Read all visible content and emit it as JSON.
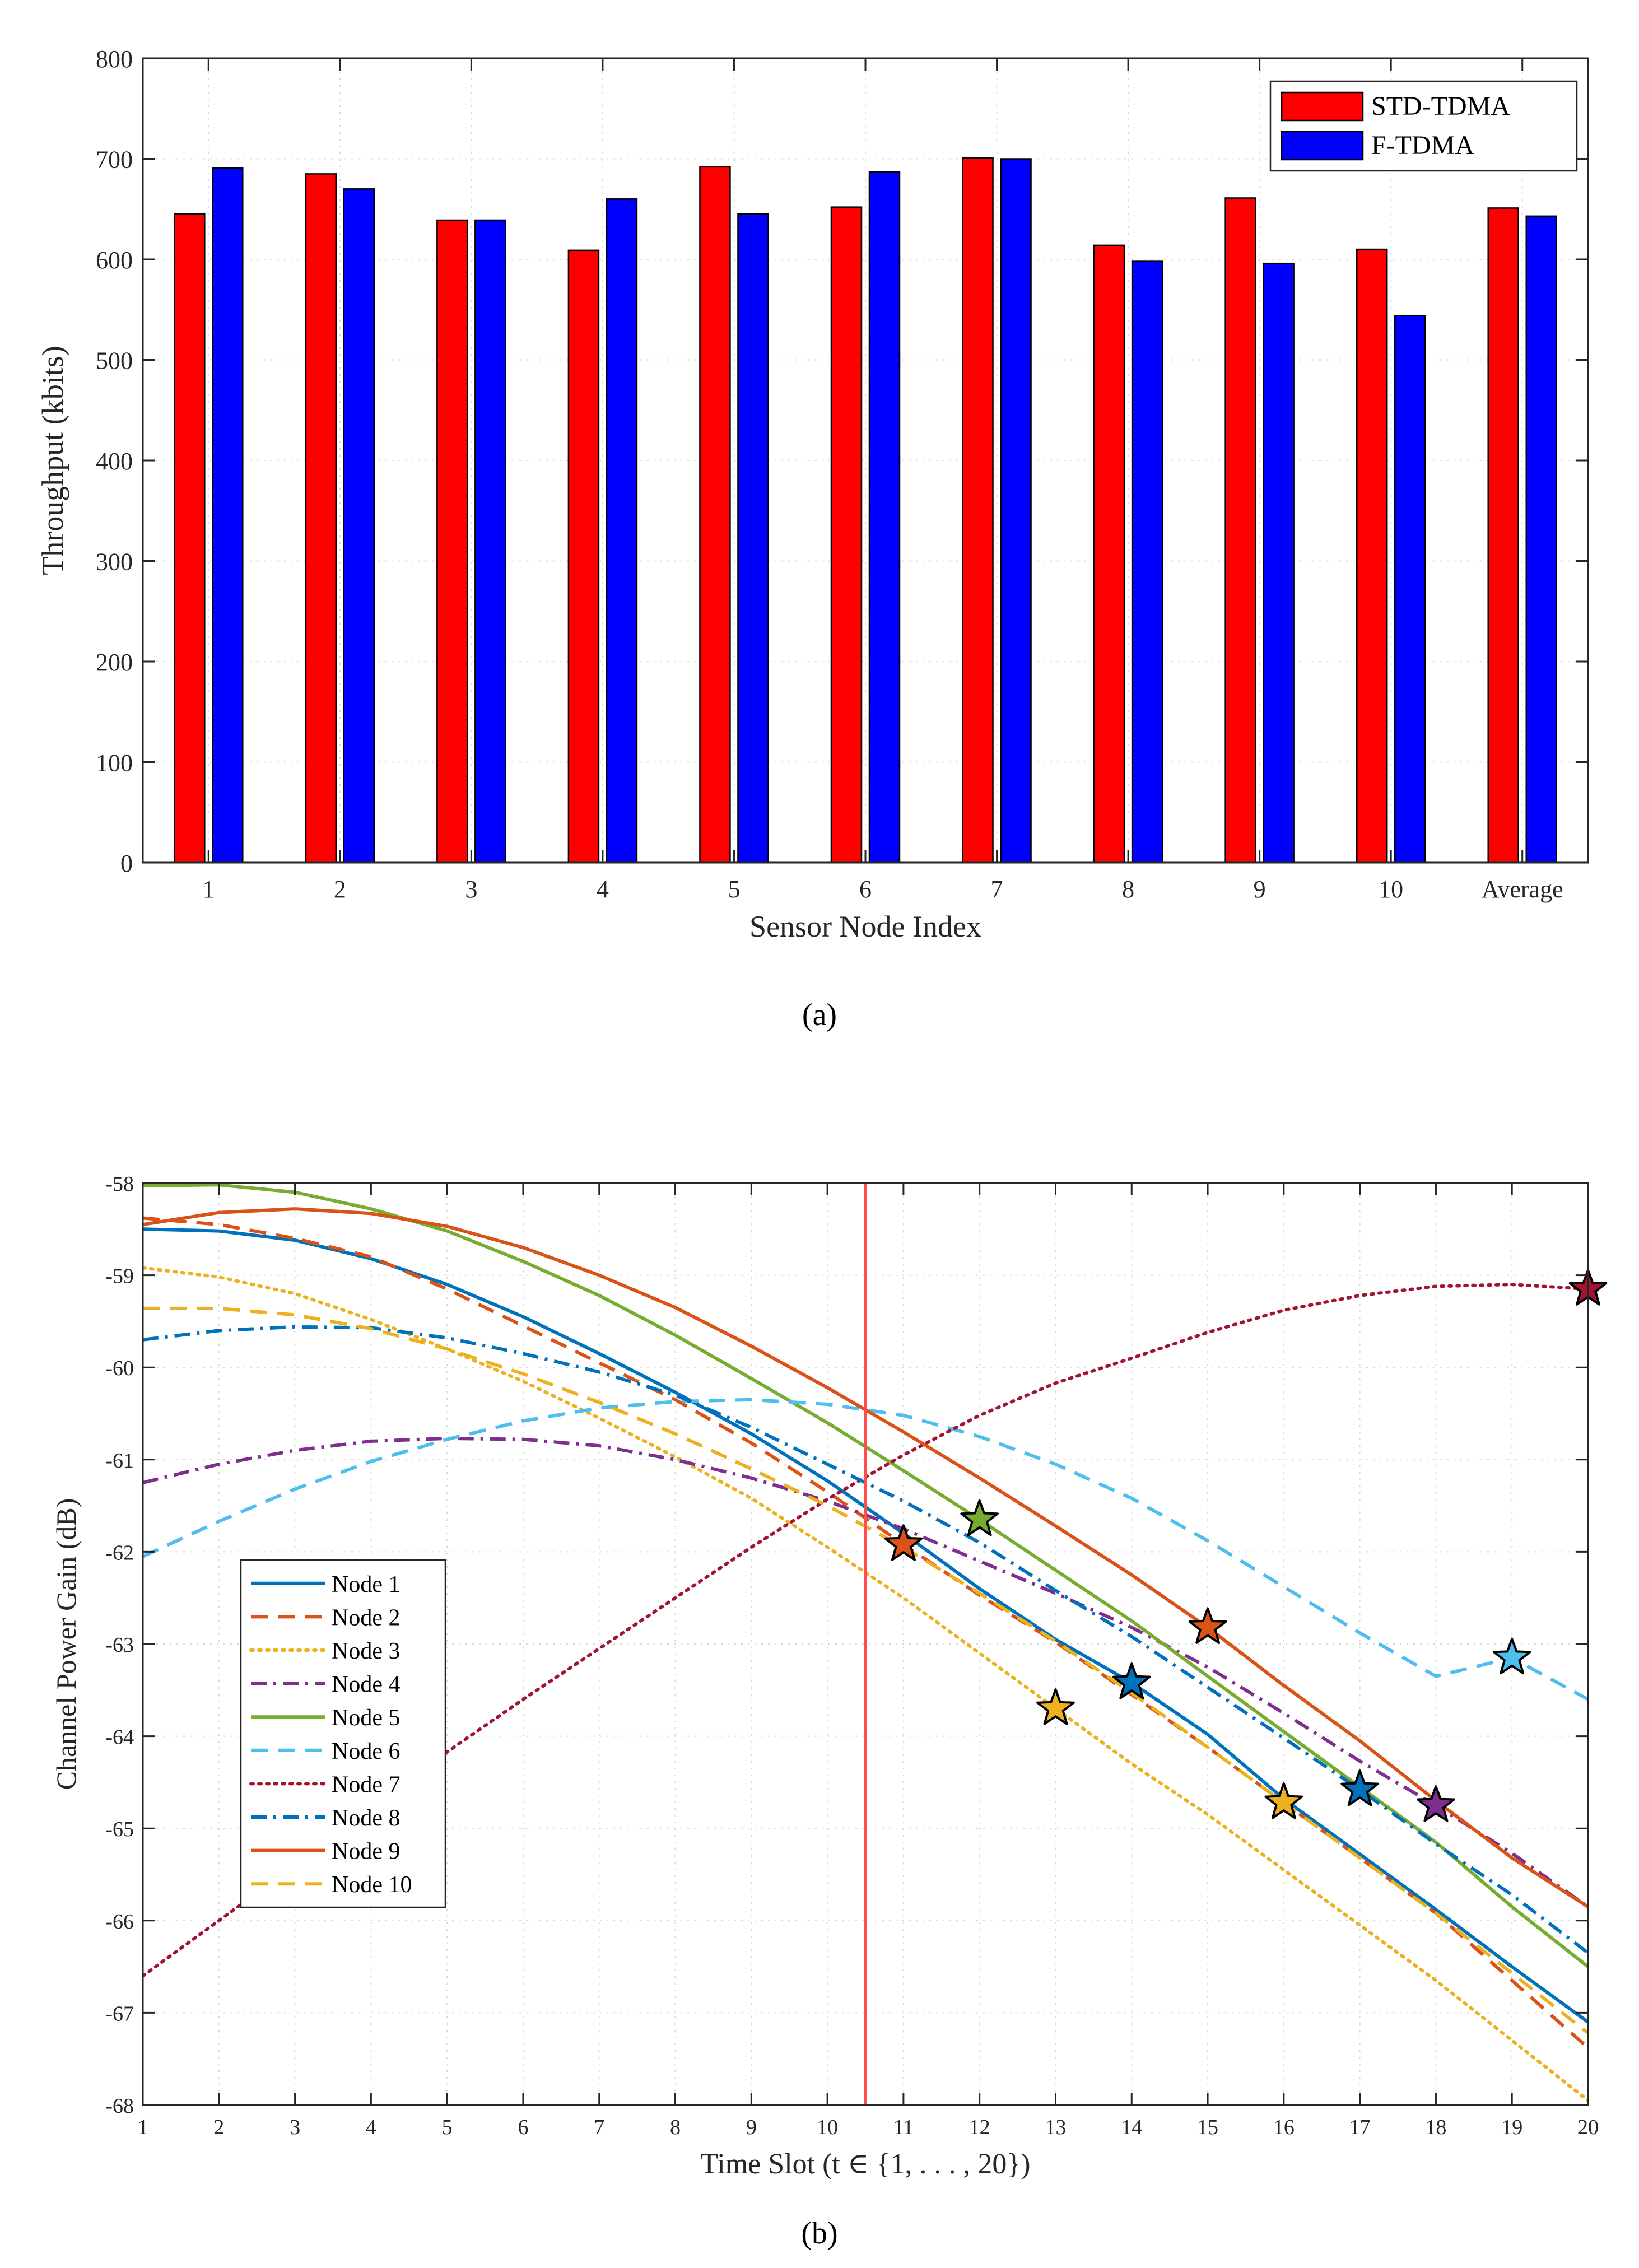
{
  "captions": {
    "a": "(a)",
    "b": "(b)"
  },
  "chart_data": [
    {
      "type": "bar",
      "xlabel": "Sensor Node Index",
      "ylabel": "Throughput (kbits)",
      "ylim": [
        0,
        800
      ],
      "yticks": [
        0,
        100,
        200,
        300,
        400,
        500,
        600,
        700,
        800
      ],
      "grid": true,
      "legend_position": "top-right",
      "categories": [
        "1",
        "2",
        "3",
        "4",
        "5",
        "6",
        "7",
        "8",
        "9",
        "10",
        "Average"
      ],
      "series": [
        {
          "name": "STD-TDMA",
          "color": "#ff0000",
          "values": [
            645,
            685,
            639,
            609,
            692,
            652,
            701,
            614,
            661,
            610,
            651
          ]
        },
        {
          "name": "F-TDMA",
          "color": "#0000ff",
          "values": [
            691,
            670,
            639,
            660,
            645,
            687,
            700,
            598,
            596,
            544,
            643
          ]
        }
      ]
    },
    {
      "type": "line",
      "xlabel": "Time Slot (t ∈ {1, . . . , 20})",
      "ylabel": "Channel Power Gain (dB)",
      "xlim": [
        1,
        20
      ],
      "ylim": [
        -68,
        -58
      ],
      "xticks": [
        1,
        2,
        3,
        4,
        5,
        6,
        7,
        8,
        9,
        10,
        11,
        12,
        13,
        14,
        15,
        16,
        17,
        18,
        19,
        20
      ],
      "yticks": [
        -68,
        -67,
        -66,
        -65,
        -64,
        -63,
        -62,
        -61,
        -60,
        -59,
        -58
      ],
      "grid": true,
      "legend_position": "bottom-left",
      "vertical_line": {
        "x": 10.5,
        "color": "#ff4d4d"
      },
      "x": [
        1,
        2,
        3,
        4,
        5,
        6,
        7,
        8,
        9,
        10,
        11,
        12,
        13,
        14,
        15,
        16,
        17,
        18,
        19,
        20
      ],
      "series": [
        {
          "name": "Node 1",
          "color": "#0072bd",
          "dash": "solid",
          "values": [
            -58.5,
            -58.52,
            -58.62,
            -58.82,
            -59.1,
            -59.45,
            -59.85,
            -60.27,
            -60.72,
            -61.23,
            -61.8,
            -62.4,
            -62.95,
            -63.42,
            -63.98,
            -64.68,
            -65.28,
            -65.88,
            -66.5,
            -67.1
          ],
          "marker": {
            "x": 14,
            "y": -63.42
          }
        },
        {
          "name": "Node 2",
          "color": "#d95319",
          "dash": "dashed",
          "values": [
            -58.38,
            -58.45,
            -58.6,
            -58.8,
            -59.15,
            -59.55,
            -59.95,
            -60.35,
            -60.82,
            -61.35,
            -61.92,
            -62.47,
            -62.98,
            -63.55,
            -64.12,
            -64.72,
            -65.32,
            -65.92,
            -66.65,
            -67.38
          ],
          "marker": {
            "x": 11,
            "y": -61.92
          }
        },
        {
          "name": "Node 3",
          "color": "#edb120",
          "dash": "dotted",
          "values": [
            -58.92,
            -59.02,
            -59.2,
            -59.48,
            -59.8,
            -60.15,
            -60.55,
            -60.97,
            -61.42,
            -61.95,
            -62.5,
            -63.1,
            -63.7,
            -64.3,
            -64.85,
            -65.45,
            -66.05,
            -66.65,
            -67.3,
            -67.95
          ],
          "marker": {
            "x": 13,
            "y": -63.7
          }
        },
        {
          "name": "Node 4",
          "color": "#7e2f8e",
          "dash": "dashdot",
          "values": [
            -61.25,
            -61.05,
            -60.9,
            -60.8,
            -60.77,
            -60.78,
            -60.85,
            -61.0,
            -61.2,
            -61.45,
            -61.75,
            -62.1,
            -62.45,
            -62.82,
            -63.25,
            -63.75,
            -64.27,
            -64.75,
            -65.27,
            -65.85
          ],
          "marker": {
            "x": 18,
            "y": -64.75
          }
        },
        {
          "name": "Node 5",
          "color": "#77ac30",
          "dash": "solid",
          "values": [
            -58.03,
            -58.02,
            -58.1,
            -58.28,
            -58.52,
            -58.85,
            -59.22,
            -59.65,
            -60.12,
            -60.6,
            -61.12,
            -61.65,
            -62.2,
            -62.75,
            -63.35,
            -63.95,
            -64.55,
            -65.15,
            -65.85,
            -66.5
          ],
          "marker": {
            "x": 12,
            "y": -61.65
          }
        },
        {
          "name": "Node 6",
          "color": "#4dbeee",
          "dash": "dashed",
          "values": [
            -62.05,
            -61.67,
            -61.32,
            -61.02,
            -60.78,
            -60.58,
            -60.44,
            -60.37,
            -60.35,
            -60.4,
            -60.52,
            -60.75,
            -61.05,
            -61.42,
            -61.88,
            -62.38,
            -62.88,
            -63.35,
            -63.15,
            -63.6
          ],
          "marker": {
            "x": 19,
            "y": -63.15
          }
        },
        {
          "name": "Node 7",
          "color": "#a2142f",
          "dash": "dotted",
          "values": [
            -66.6,
            -66.0,
            -65.4,
            -64.8,
            -64.17,
            -63.6,
            -63.05,
            -62.5,
            -61.95,
            -61.43,
            -60.95,
            -60.52,
            -60.17,
            -59.9,
            -59.62,
            -59.38,
            -59.22,
            -59.12,
            -59.1,
            -59.15
          ],
          "marker": {
            "x": 20,
            "y": -59.15
          }
        },
        {
          "name": "Node 8",
          "color": "#0072bd",
          "dash": "dashdot",
          "values": [
            -59.7,
            -59.6,
            -59.56,
            -59.57,
            -59.68,
            -59.85,
            -60.05,
            -60.3,
            -60.65,
            -61.05,
            -61.45,
            -61.9,
            -62.42,
            -62.92,
            -63.47,
            -64.02,
            -64.58,
            -65.17,
            -65.72,
            -66.35
          ],
          "marker": {
            "x": 17,
            "y": -64.58
          }
        },
        {
          "name": "Node 9",
          "color": "#d95319",
          "dash": "solid",
          "values": [
            -58.45,
            -58.32,
            -58.28,
            -58.33,
            -58.47,
            -58.7,
            -59.0,
            -59.35,
            -59.77,
            -60.22,
            -60.7,
            -61.2,
            -61.72,
            -62.25,
            -62.82,
            -63.45,
            -64.05,
            -64.7,
            -65.32,
            -65.85
          ],
          "marker": {
            "x": 15,
            "y": -62.82
          }
        },
        {
          "name": "Node 10",
          "color": "#edb120",
          "dash": "dashed",
          "values": [
            -59.36,
            -59.36,
            -59.43,
            -59.58,
            -59.8,
            -60.07,
            -60.38,
            -60.72,
            -61.1,
            -61.5,
            -61.95,
            -62.45,
            -62.97,
            -63.53,
            -64.12,
            -64.72,
            -65.32,
            -65.92,
            -66.57,
            -67.22
          ],
          "marker": {
            "x": 16,
            "y": -64.72
          }
        }
      ]
    }
  ]
}
